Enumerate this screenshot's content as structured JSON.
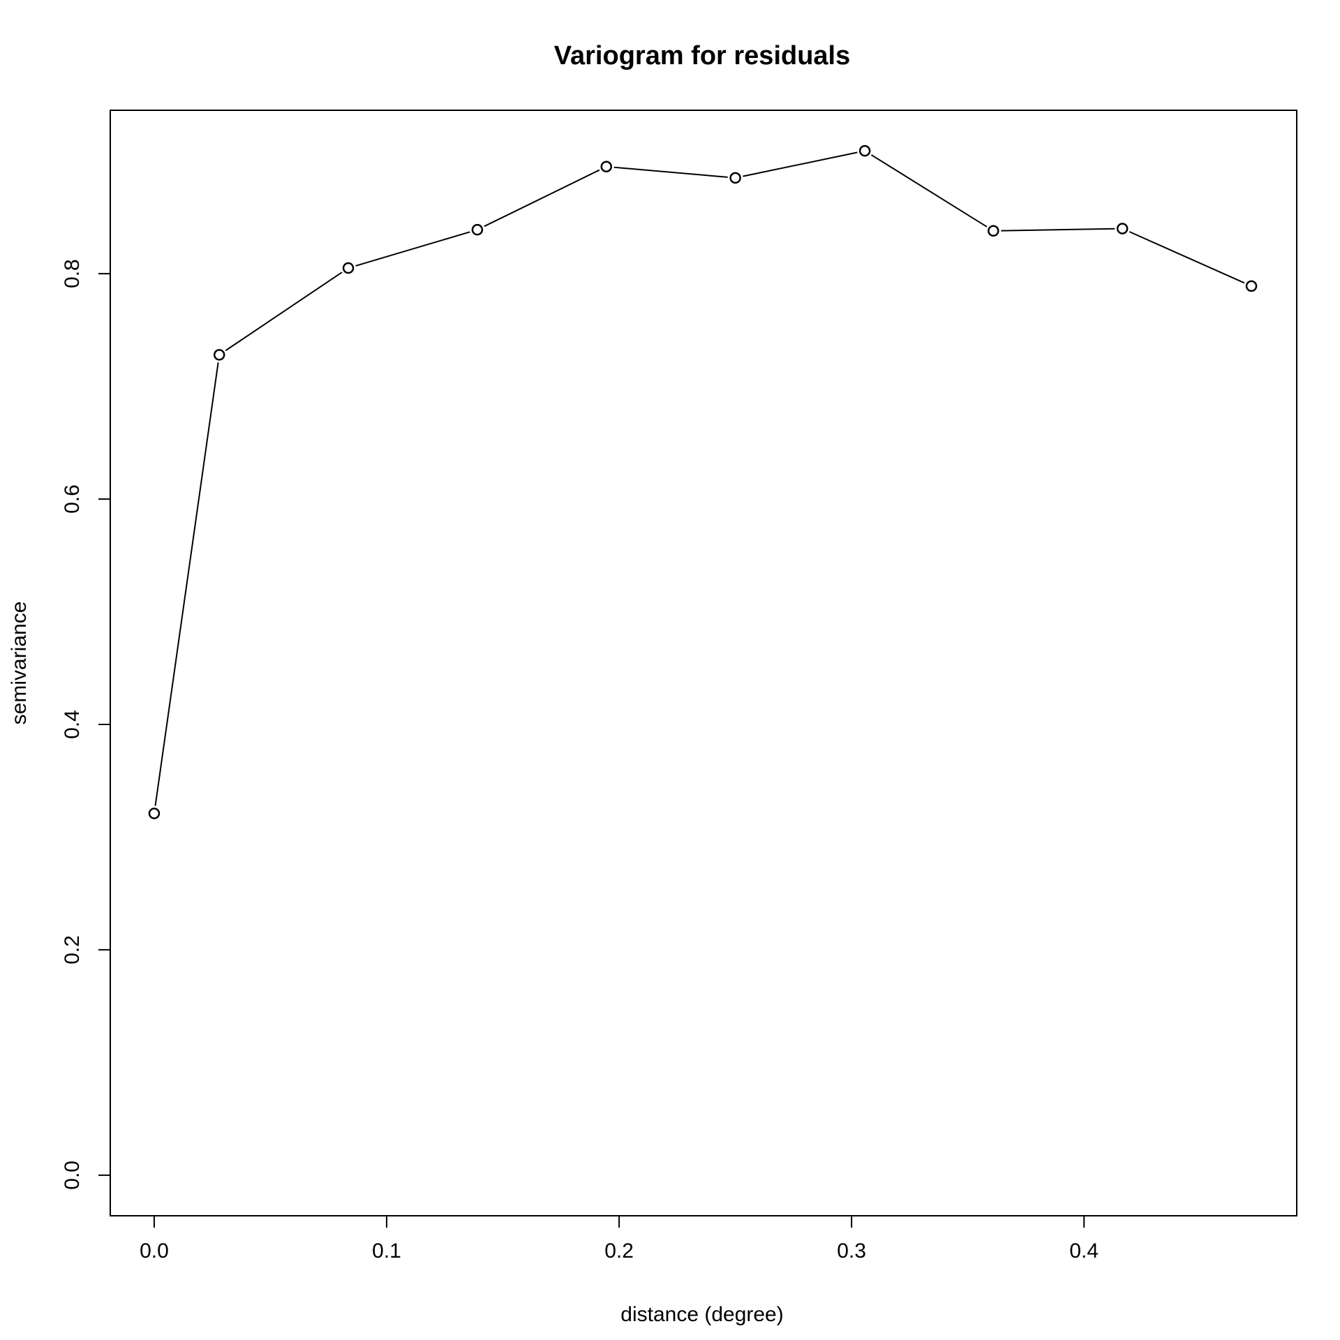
{
  "chart_data": {
    "type": "line",
    "title": "Variogram for residuals",
    "xlabel": "distance (degree)",
    "ylabel": "semivariance",
    "xlim": [
      -0.0189,
      0.4915
    ],
    "ylim": [
      -0.036,
      0.945
    ],
    "xticks": [
      0.0,
      0.1,
      0.2,
      0.3,
      0.4
    ],
    "xtick_labels": [
      "0.0",
      "0.1",
      "0.2",
      "0.3",
      "0.4"
    ],
    "yticks": [
      0.0,
      0.2,
      0.4,
      0.6,
      0.8
    ],
    "ytick_labels": [
      "0.0",
      "0.2",
      "0.4",
      "0.6",
      "0.8"
    ],
    "grid": false,
    "legend": false,
    "series": [
      {
        "x": [
          0.0,
          0.028,
          0.0835,
          0.139,
          0.1945,
          0.25,
          0.3057,
          0.361,
          0.4165,
          0.472
        ],
        "y": [
          0.321,
          0.728,
          0.805,
          0.839,
          0.895,
          0.885,
          0.909,
          0.838,
          0.84,
          0.789
        ],
        "style": "line+points",
        "color": "#000000"
      }
    ]
  }
}
